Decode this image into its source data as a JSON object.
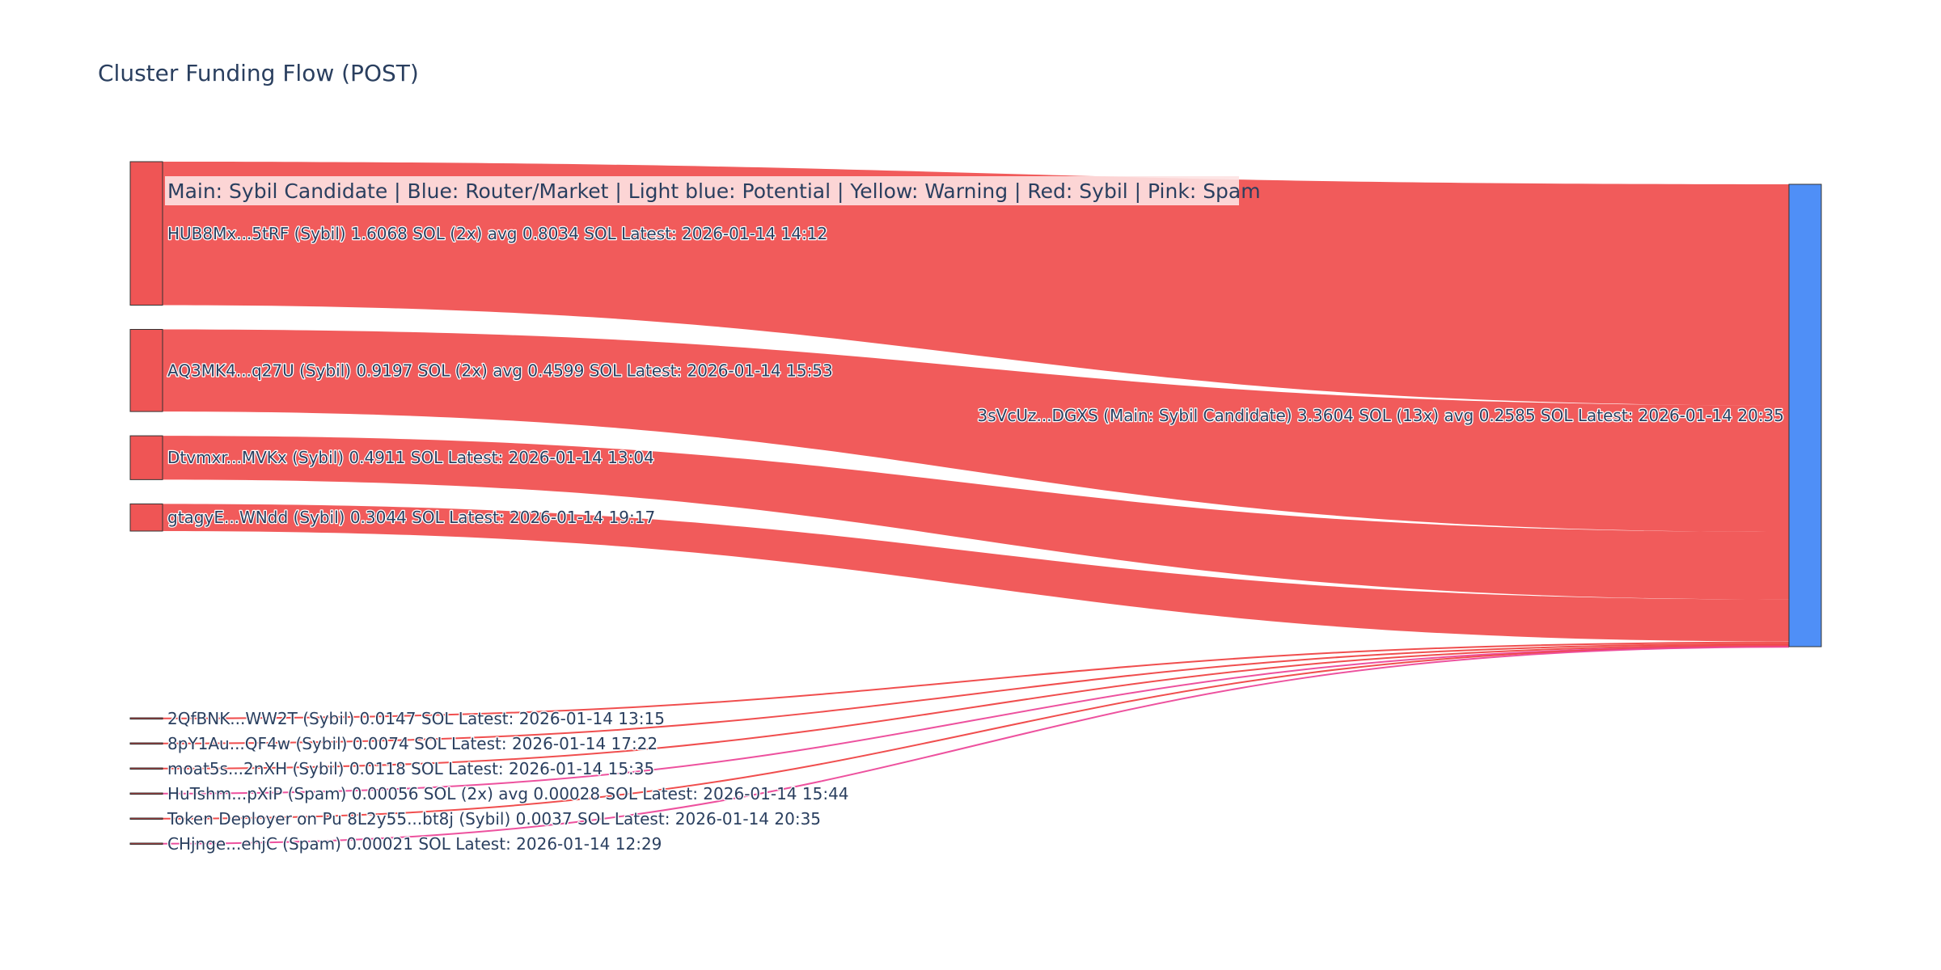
{
  "chart_data": {
    "type": "sankey",
    "title": "Cluster Funding Flow (POST)",
    "legend_note": "Main: Sybil Candidate  |  Blue: Router/Market | Light blue: Potential | Yellow: Warning | Red: Sybil | Pink: Spam",
    "colors": {
      "sybil": "#ef4444",
      "spam": "#ec4899",
      "main": "#3b82f6",
      "node_border": "#333333"
    },
    "target": {
      "label": "3sVcUz...DGXS (Main: Sybil Candidate) 3.3604 SOL (13x) avg 0.2585 SOL Latest: 2026-01-14 20:35",
      "value": 3.3604
    },
    "sources": [
      {
        "label": "HUB8Mx...5tRF (Sybil) 1.6068 SOL (2x) avg 0.8034 SOL Latest: 2026-01-14 14:12",
        "value": 1.6068,
        "kind": "sybil"
      },
      {
        "label": "AQ3MK4...q27U (Sybil) 0.9197 SOL (2x) avg 0.4599 SOL Latest: 2026-01-14 15:53",
        "value": 0.9197,
        "kind": "sybil"
      },
      {
        "label": "Dtvmxr...MVKx (Sybil) 0.4911 SOL Latest: 2026-01-14 13:04",
        "value": 0.4911,
        "kind": "sybil"
      },
      {
        "label": "gtagyE...WNdd (Sybil) 0.3044 SOL Latest: 2026-01-14 19:17",
        "value": 0.3044,
        "kind": "sybil"
      },
      {
        "label": "2QfBNK...WW2T (Sybil) 0.0147 SOL Latest: 2026-01-14 13:15",
        "value": 0.0147,
        "kind": "sybil"
      },
      {
        "label": "8pY1Au...QF4w (Sybil) 0.0074 SOL Latest: 2026-01-14 17:22",
        "value": 0.0074,
        "kind": "sybil"
      },
      {
        "label": "moat5s...2nXH (Sybil) 0.0118 SOL Latest: 2026-01-14 15:35",
        "value": 0.0118,
        "kind": "sybil"
      },
      {
        "label": "HuTshm...pXiP (Spam) 0.00056 SOL (2x) avg 0.00028 SOL Latest: 2026-01-14 15:44",
        "value": 0.00056,
        "kind": "spam"
      },
      {
        "label": "Token Deployer on Pu 8L2y55...bt8j (Sybil) 0.0037 SOL Latest: 2026-01-14 20:35",
        "value": 0.0037,
        "kind": "sybil"
      },
      {
        "label": "CHjnge...ehjC (Spam) 0.00021 SOL Latest: 2026-01-14 12:29",
        "value": 0.00021,
        "kind": "spam"
      }
    ]
  }
}
